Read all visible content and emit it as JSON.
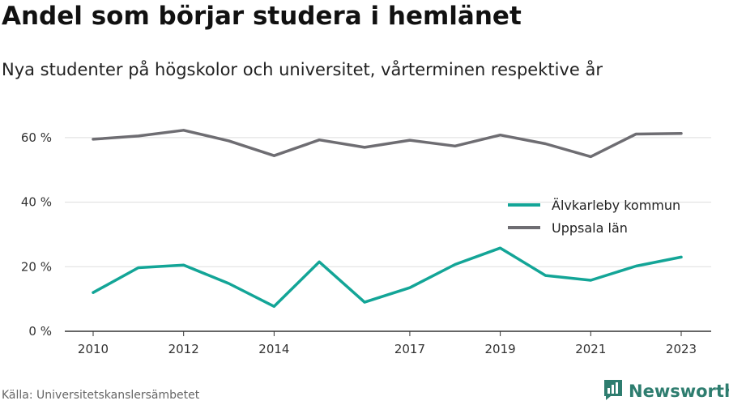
{
  "header": {
    "title": "Andel som börjar studera i hemlänet",
    "subtitle": "Nya studenter på högskolor och universitet, vårterminen respektive år"
  },
  "footer": {
    "source": "Källa: Universitetskanslersämbetet",
    "brand": "Newsworthy",
    "brand_icon": "bar-chart-logo-icon",
    "brand_color": "#2e7d6f"
  },
  "chart_data": {
    "type": "line",
    "x": [
      2010,
      2011,
      2012,
      2013,
      2014,
      2015,
      2016,
      2017,
      2018,
      2019,
      2020,
      2021,
      2022,
      2023
    ],
    "x_tick_labels": [
      "2010",
      "2012",
      "2014",
      "2017",
      "2019",
      "2021",
      "2023"
    ],
    "x_tick_values": [
      2010,
      2012,
      2014,
      2017,
      2019,
      2021,
      2023
    ],
    "y_tick_labels": [
      "0 %",
      "20 %",
      "40 %",
      "60 %"
    ],
    "y_tick_values": [
      0,
      20,
      40,
      60
    ],
    "ylim": [
      0,
      65
    ],
    "grid": true,
    "legend_position": "right",
    "series": [
      {
        "name": "Älvkarleby kommun",
        "color": "#13a597",
        "values": [
          12,
          19.7,
          20.5,
          14.8,
          7.7,
          21.5,
          9,
          13.5,
          20.7,
          25.8,
          17.3,
          15.8,
          20.2,
          23
        ]
      },
      {
        "name": "Uppsala län",
        "color": "#6e6d72",
        "values": [
          59.5,
          60.5,
          62.3,
          59,
          54.4,
          59.3,
          57,
          59.2,
          57.4,
          60.8,
          58.1,
          54.1,
          61.1,
          61.3
        ]
      }
    ]
  }
}
